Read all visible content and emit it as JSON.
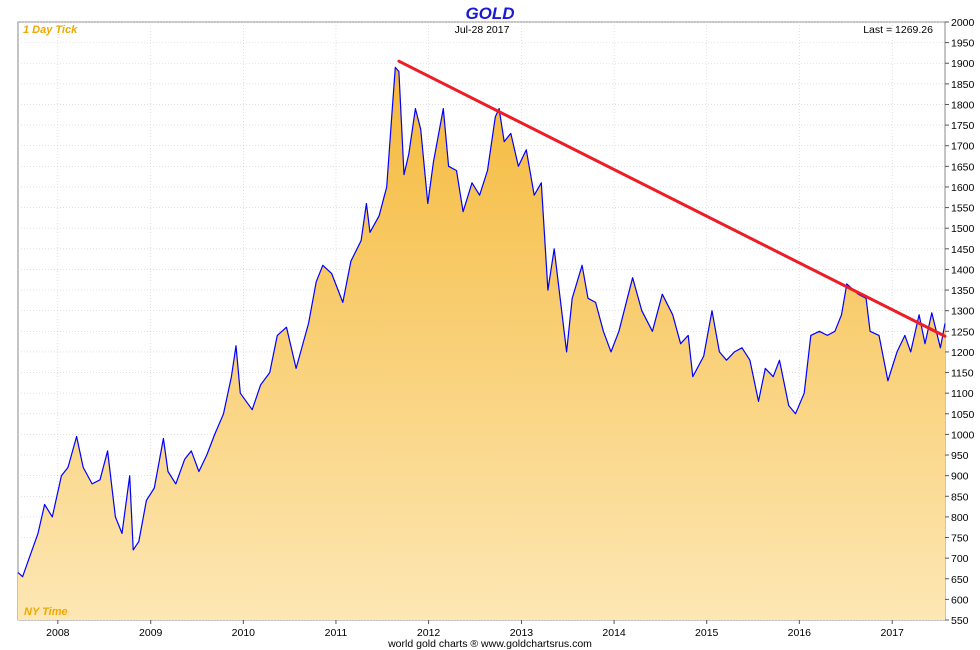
{
  "header": {
    "title": "GOLD",
    "interval": "1 Day Tick",
    "date": "Jul-28  2017",
    "last": "Last = 1269.26",
    "timezone": "NY Time",
    "source": "world gold charts ® www.goldchartsrus.com"
  },
  "colors": {
    "title": "#1a1ad6",
    "price_line": "#0000ff",
    "trend_line": "#ee1c25",
    "fill_top": "#f5b93a",
    "fill_bottom": "#fde7b4",
    "label_orange": "#f0a800",
    "grid": "#cfcfcf"
  },
  "chart_data": {
    "type": "area",
    "title": "GOLD",
    "x_axis": {
      "type": "time",
      "range": [
        "2007-07-28",
        "2017-07-28"
      ],
      "tick_labels": [
        "2008",
        "2009",
        "2010",
        "2011",
        "2012",
        "2013",
        "2014",
        "2015",
        "2016",
        "2017"
      ]
    },
    "y_axis": {
      "position": "right",
      "range": [
        550,
        2000
      ],
      "tick_labels": [
        "550",
        "600",
        "650",
        "700",
        "750",
        "800",
        "850",
        "900",
        "950",
        "1000",
        "1050",
        "1100",
        "1150",
        "1200",
        "1250",
        "1300",
        "1350",
        "1400",
        "1450",
        "1500",
        "1550",
        "1600",
        "1650",
        "1700",
        "1750",
        "1800",
        "1850",
        "1900",
        "1950",
        "2000"
      ]
    },
    "grid": true,
    "last_value": 1269.26,
    "series": [
      {
        "type": "area",
        "points": [
          [
            "2007-07-28",
            665
          ],
          [
            "2007-08-15",
            655
          ],
          [
            "2007-09-10",
            700
          ],
          [
            "2007-10-15",
            760
          ],
          [
            "2007-11-10",
            830
          ],
          [
            "2007-12-10",
            800
          ],
          [
            "2008-01-15",
            900
          ],
          [
            "2008-02-10",
            920
          ],
          [
            "2008-03-15",
            995
          ],
          [
            "2008-04-10",
            920
          ],
          [
            "2008-05-15",
            880
          ],
          [
            "2008-06-15",
            890
          ],
          [
            "2008-07-15",
            960
          ],
          [
            "2008-08-15",
            800
          ],
          [
            "2008-09-10",
            760
          ],
          [
            "2008-10-10",
            900
          ],
          [
            "2008-10-24",
            720
          ],
          [
            "2008-11-15",
            740
          ],
          [
            "2008-12-15",
            840
          ],
          [
            "2009-01-15",
            870
          ],
          [
            "2009-02-20",
            990
          ],
          [
            "2009-03-10",
            910
          ],
          [
            "2009-04-10",
            880
          ],
          [
            "2009-05-15",
            940
          ],
          [
            "2009-06-10",
            960
          ],
          [
            "2009-07-10",
            910
          ],
          [
            "2009-08-10",
            950
          ],
          [
            "2009-09-10",
            1000
          ],
          [
            "2009-10-15",
            1050
          ],
          [
            "2009-11-15",
            1140
          ],
          [
            "2009-12-03",
            1215
          ],
          [
            "2009-12-20",
            1100
          ],
          [
            "2010-02-05",
            1060
          ],
          [
            "2010-03-10",
            1120
          ],
          [
            "2010-04-15",
            1150
          ],
          [
            "2010-05-15",
            1240
          ],
          [
            "2010-06-20",
            1260
          ],
          [
            "2010-07-28",
            1160
          ],
          [
            "2010-09-15",
            1270
          ],
          [
            "2010-10-15",
            1370
          ],
          [
            "2010-11-10",
            1410
          ],
          [
            "2010-12-15",
            1390
          ],
          [
            "2011-01-28",
            1320
          ],
          [
            "2011-03-01",
            1420
          ],
          [
            "2011-04-10",
            1470
          ],
          [
            "2011-05-01",
            1560
          ],
          [
            "2011-05-15",
            1490
          ],
          [
            "2011-06-20",
            1530
          ],
          [
            "2011-07-20",
            1600
          ],
          [
            "2011-08-10",
            1780
          ],
          [
            "2011-08-23",
            1890
          ],
          [
            "2011-09-06",
            1880
          ],
          [
            "2011-09-26",
            1630
          ],
          [
            "2011-10-15",
            1680
          ],
          [
            "2011-11-10",
            1790
          ],
          [
            "2011-12-01",
            1740
          ],
          [
            "2011-12-29",
            1560
          ],
          [
            "2012-01-20",
            1660
          ],
          [
            "2012-02-28",
            1790
          ],
          [
            "2012-03-20",
            1650
          ],
          [
            "2012-04-20",
            1640
          ],
          [
            "2012-05-16",
            1540
          ],
          [
            "2012-06-20",
            1610
          ],
          [
            "2012-07-20",
            1580
          ],
          [
            "2012-08-20",
            1640
          ],
          [
            "2012-09-20",
            1770
          ],
          [
            "2012-10-05",
            1790
          ],
          [
            "2012-10-25",
            1710
          ],
          [
            "2012-11-20",
            1730
          ],
          [
            "2012-12-20",
            1650
          ],
          [
            "2013-01-20",
            1690
          ],
          [
            "2013-02-20",
            1580
          ],
          [
            "2013-03-20",
            1610
          ],
          [
            "2013-04-15",
            1350
          ],
          [
            "2013-05-10",
            1450
          ],
          [
            "2013-06-28",
            1200
          ],
          [
            "2013-07-20",
            1330
          ],
          [
            "2013-08-28",
            1410
          ],
          [
            "2013-09-20",
            1330
          ],
          [
            "2013-10-20",
            1320
          ],
          [
            "2013-11-20",
            1250
          ],
          [
            "2013-12-20",
            1200
          ],
          [
            "2014-01-20",
            1250
          ],
          [
            "2014-03-15",
            1380
          ],
          [
            "2014-04-20",
            1300
          ],
          [
            "2014-06-01",
            1250
          ],
          [
            "2014-07-10",
            1340
          ],
          [
            "2014-08-20",
            1290
          ],
          [
            "2014-09-20",
            1220
          ],
          [
            "2014-10-20",
            1240
          ],
          [
            "2014-11-07",
            1140
          ],
          [
            "2014-12-20",
            1190
          ],
          [
            "2015-01-22",
            1300
          ],
          [
            "2015-02-20",
            1200
          ],
          [
            "2015-03-20",
            1180
          ],
          [
            "2015-04-20",
            1200
          ],
          [
            "2015-05-20",
            1210
          ],
          [
            "2015-06-20",
            1180
          ],
          [
            "2015-07-24",
            1080
          ],
          [
            "2015-08-20",
            1160
          ],
          [
            "2015-09-20",
            1140
          ],
          [
            "2015-10-15",
            1180
          ],
          [
            "2015-11-20",
            1070
          ],
          [
            "2015-12-17",
            1050
          ],
          [
            "2016-01-20",
            1100
          ],
          [
            "2016-02-15",
            1240
          ],
          [
            "2016-03-20",
            1250
          ],
          [
            "2016-04-20",
            1240
          ],
          [
            "2016-05-20",
            1250
          ],
          [
            "2016-06-15",
            1290
          ],
          [
            "2016-07-06",
            1365
          ],
          [
            "2016-08-20",
            1340
          ],
          [
            "2016-09-20",
            1330
          ],
          [
            "2016-10-06",
            1250
          ],
          [
            "2016-11-10",
            1240
          ],
          [
            "2016-12-15",
            1130
          ],
          [
            "2017-01-20",
            1200
          ],
          [
            "2017-02-20",
            1240
          ],
          [
            "2017-03-15",
            1200
          ],
          [
            "2017-04-17",
            1290
          ],
          [
            "2017-05-10",
            1220
          ],
          [
            "2017-06-06",
            1295
          ],
          [
            "2017-07-10",
            1210
          ],
          [
            "2017-07-28",
            1269
          ]
        ]
      },
      {
        "type": "trendline",
        "points": [
          [
            "2011-09-06",
            1905
          ],
          [
            "2017-07-28",
            1238
          ]
        ]
      }
    ]
  }
}
